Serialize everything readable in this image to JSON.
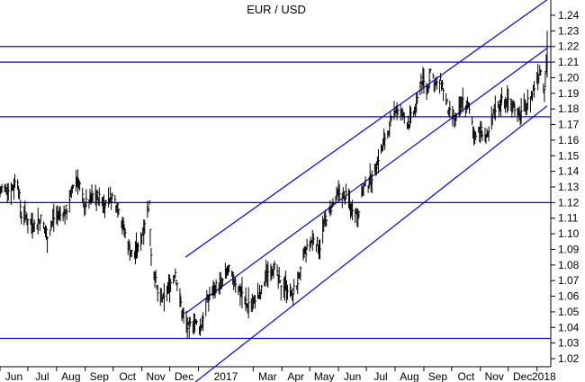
{
  "chart_data": {
    "type": "line",
    "subtype": "ohlc-bar",
    "title": "EUR / USD",
    "xlabel": "",
    "ylabel": "",
    "ylim": [
      1.015,
      1.25
    ],
    "xlim": [
      "2016-06-01",
      "2018-01-12"
    ],
    "y_axis_position": "right",
    "grid": false,
    "y_ticks": [
      "1.02",
      "1.03",
      "1.04",
      "1.05",
      "1.06",
      "1.07",
      "1.08",
      "1.09",
      "1.10",
      "1.11",
      "1.12",
      "1.13",
      "1.14",
      "1.15",
      "1.16",
      "1.17",
      "1.18",
      "1.19",
      "1.20",
      "1.21",
      "1.22",
      "1.23",
      "1.24"
    ],
    "x_ticks": [
      {
        "label": "Jun",
        "date": "2016-06-01"
      },
      {
        "label": "Jul",
        "date": "2016-07-01"
      },
      {
        "label": "Aug",
        "date": "2016-08-01"
      },
      {
        "label": "Sep",
        "date": "2016-09-01"
      },
      {
        "label": "Oct",
        "date": "2016-10-01"
      },
      {
        "label": "Nov",
        "date": "2016-11-01"
      },
      {
        "label": "Dec",
        "date": "2016-12-01"
      },
      {
        "label": "2017",
        "date": "2017-01-01"
      },
      {
        "label": "Mar",
        "date": "2017-03-01"
      },
      {
        "label": "Apr",
        "date": "2017-04-01"
      },
      {
        "label": "May",
        "date": "2017-05-01"
      },
      {
        "label": "Jun",
        "date": "2017-06-01"
      },
      {
        "label": "Jul",
        "date": "2017-07-01"
      },
      {
        "label": "Aug",
        "date": "2017-08-01"
      },
      {
        "label": "Sep",
        "date": "2017-09-01"
      },
      {
        "label": "Oct",
        "date": "2017-10-01"
      },
      {
        "label": "Nov",
        "date": "2017-11-01"
      },
      {
        "label": "Dec",
        "date": "2017-12-01"
      },
      {
        "label": "2018",
        "date": "2018-01-01"
      }
    ],
    "series": [
      {
        "values": [
          [
            "2016-06-01",
            1.13
          ],
          [
            "2016-06-10",
            1.128
          ],
          [
            "2016-06-20",
            1.135
          ],
          [
            "2016-06-24",
            1.112
          ],
          [
            "2016-06-30",
            1.111
          ],
          [
            "2016-07-08",
            1.106
          ],
          [
            "2016-07-15",
            1.11
          ],
          [
            "2016-07-22",
            1.1
          ],
          [
            "2016-07-29",
            1.11
          ],
          [
            "2016-08-05",
            1.112
          ],
          [
            "2016-08-12",
            1.116
          ],
          [
            "2016-08-19",
            1.132
          ],
          [
            "2016-08-24",
            1.136
          ],
          [
            "2016-08-31",
            1.118
          ],
          [
            "2016-09-08",
            1.125
          ],
          [
            "2016-09-15",
            1.124
          ],
          [
            "2016-09-22",
            1.12
          ],
          [
            "2016-09-30",
            1.124
          ],
          [
            "2016-10-07",
            1.118
          ],
          [
            "2016-10-14",
            1.1
          ],
          [
            "2016-10-21",
            1.088
          ],
          [
            "2016-10-28",
            1.09
          ],
          [
            "2016-11-04",
            1.108
          ],
          [
            "2016-11-09",
            1.12
          ],
          [
            "2016-11-11",
            1.088
          ],
          [
            "2016-11-18",
            1.062
          ],
          [
            "2016-11-25",
            1.058
          ],
          [
            "2016-11-30",
            1.066
          ],
          [
            "2016-12-07",
            1.076
          ],
          [
            "2016-12-14",
            1.052
          ],
          [
            "2016-12-20",
            1.04
          ],
          [
            "2016-12-28",
            1.044
          ],
          [
            "2017-01-03",
            1.04
          ],
          [
            "2017-01-10",
            1.058
          ],
          [
            "2017-01-18",
            1.066
          ],
          [
            "2017-01-26",
            1.068
          ],
          [
            "2017-02-02",
            1.078
          ],
          [
            "2017-02-09",
            1.07
          ],
          [
            "2017-02-16",
            1.064
          ],
          [
            "2017-02-22",
            1.055
          ],
          [
            "2017-03-01",
            1.058
          ],
          [
            "2017-03-09",
            1.062
          ],
          [
            "2017-03-16",
            1.075
          ],
          [
            "2017-03-23",
            1.08
          ],
          [
            "2017-03-30",
            1.068
          ],
          [
            "2017-04-06",
            1.066
          ],
          [
            "2017-04-12",
            1.062
          ],
          [
            "2017-04-20",
            1.072
          ],
          [
            "2017-04-24",
            1.086
          ],
          [
            "2017-04-28",
            1.09
          ],
          [
            "2017-05-05",
            1.098
          ],
          [
            "2017-05-12",
            1.092
          ],
          [
            "2017-05-18",
            1.11
          ],
          [
            "2017-05-25",
            1.118
          ],
          [
            "2017-06-01",
            1.126
          ],
          [
            "2017-06-08",
            1.125
          ],
          [
            "2017-06-15",
            1.118
          ],
          [
            "2017-06-22",
            1.114
          ],
          [
            "2017-06-27",
            1.13
          ],
          [
            "2017-07-05",
            1.134
          ],
          [
            "2017-07-12",
            1.145
          ],
          [
            "2017-07-20",
            1.16
          ],
          [
            "2017-07-28",
            1.172
          ],
          [
            "2017-08-02",
            1.182
          ],
          [
            "2017-08-09",
            1.176
          ],
          [
            "2017-08-16",
            1.172
          ],
          [
            "2017-08-24",
            1.182
          ],
          [
            "2017-08-29",
            1.2
          ],
          [
            "2017-09-05",
            1.192
          ],
          [
            "2017-09-08",
            1.205
          ],
          [
            "2017-09-15",
            1.195
          ],
          [
            "2017-09-20",
            1.198
          ],
          [
            "2017-09-28",
            1.178
          ],
          [
            "2017-10-05",
            1.172
          ],
          [
            "2017-10-12",
            1.186
          ],
          [
            "2017-10-19",
            1.182
          ],
          [
            "2017-10-26",
            1.164
          ],
          [
            "2017-11-02",
            1.166
          ],
          [
            "2017-11-09",
            1.162
          ],
          [
            "2017-11-16",
            1.18
          ],
          [
            "2017-11-23",
            1.185
          ],
          [
            "2017-11-28",
            1.185
          ],
          [
            "2017-12-05",
            1.186
          ],
          [
            "2017-12-12",
            1.176
          ],
          [
            "2017-12-19",
            1.182
          ],
          [
            "2017-12-27",
            1.19
          ],
          [
            "2018-01-02",
            1.202
          ],
          [
            "2018-01-05",
            1.206
          ],
          [
            "2018-01-09",
            1.194
          ],
          [
            "2018-01-12",
            1.22
          ]
        ]
      }
    ],
    "horizontal_lines": [
      1.22,
      1.21,
      1.175,
      1.12,
      1.033
    ],
    "channel_lines": [
      {
        "from": [
          "2016-12-18",
          1.085
        ],
        "to": [
          "2018-01-12",
          1.25
        ]
      },
      {
        "from": [
          "2016-12-18",
          1.049
        ],
        "to": [
          "2018-01-12",
          1.219
        ]
      },
      {
        "from": [
          "2016-12-18",
          1.0
        ],
        "to": [
          "2018-01-12",
          1.182
        ]
      }
    ],
    "colors": {
      "reference_lines": "#0000ff",
      "price": "#000000",
      "background": "#ffffff"
    }
  }
}
